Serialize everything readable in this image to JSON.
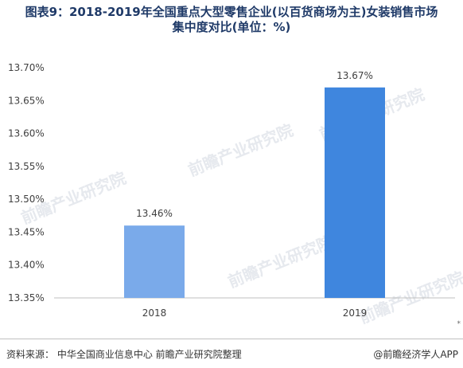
{
  "header": {
    "title_line1": "图表9：2018-2019年全国重点大型零售企业(以百货商场为主)女装销售市场",
    "title_line2": "集中度对比(单位：%)"
  },
  "chart_data": {
    "type": "bar",
    "categories": [
      "2018",
      "2019"
    ],
    "values": [
      13.46,
      13.67
    ],
    "value_labels": [
      "13.46%",
      "13.67%"
    ],
    "ylim": [
      13.35,
      13.7
    ],
    "yticks": [
      13.35,
      13.4,
      13.45,
      13.5,
      13.55,
      13.6,
      13.65,
      13.7
    ],
    "ytick_labels": [
      "13.35%",
      "13.40%",
      "13.45%",
      "13.50%",
      "13.55%",
      "13.60%",
      "13.65%",
      "13.70%"
    ],
    "grid": false,
    "bar_colors": [
      "#7aaaea",
      "#3f86de"
    ]
  },
  "watermark": "前瞻产业研究院",
  "footer": {
    "source_text": "资料来源： 中华全国商业信息中心 前瞻产业研究院整理",
    "brand_text": "@前瞻经济学人APP",
    "corner_mark": "*"
  },
  "colors": {
    "title": "#1f3a68",
    "axis": "#bfbfbf"
  }
}
